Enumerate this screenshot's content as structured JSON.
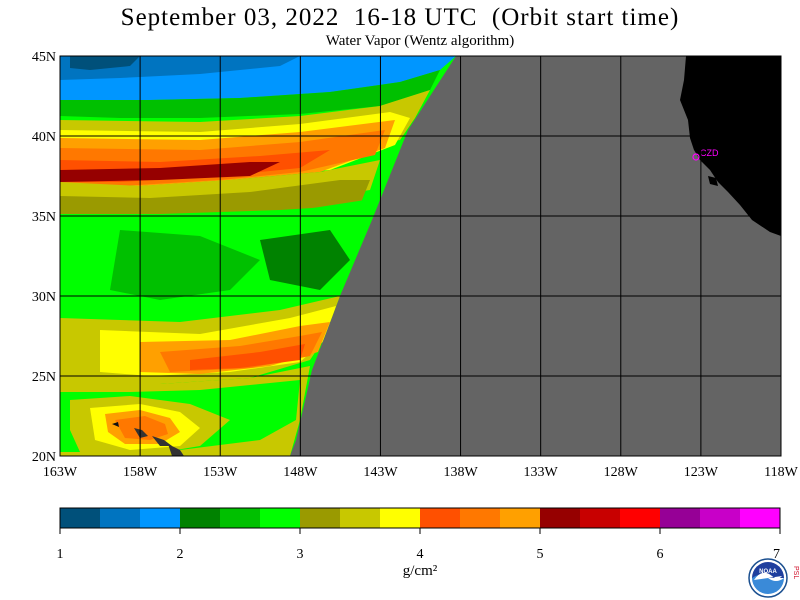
{
  "header": {
    "title": "September 03, 2022  16-18 UTC  (Orbit start time)",
    "subtitle": "Water Vapor (Wentz algorithm)"
  },
  "map": {
    "lat_labels": [
      "45N",
      "40N",
      "35N",
      "30N",
      "25N",
      "20N"
    ],
    "lon_labels": [
      "163W",
      "158W",
      "153W",
      "148W",
      "143W",
      "138W",
      "133W",
      "128W",
      "123W",
      "118W"
    ],
    "lat_range": [
      20,
      45
    ],
    "lon_range": [
      -163,
      -118
    ],
    "station_label": "CZD",
    "colors": {
      "no_data": "#646464",
      "land": "#000000",
      "station": "#ff00ff"
    }
  },
  "colorbar": {
    "tick_labels": [
      "1",
      "2",
      "3",
      "4",
      "5",
      "6",
      "7"
    ],
    "unit": "g/cm²",
    "colors": [
      "#00507a",
      "#0074c0",
      "#0096ff",
      "#008200",
      "#00c000",
      "#00ff00",
      "#9a9a00",
      "#c8c800",
      "#ffff00",
      "#ff5000",
      "#ff7800",
      "#ffa000",
      "#960000",
      "#c80000",
      "#ff0000",
      "#960096",
      "#c800c8",
      "#ff00ff"
    ]
  },
  "logo": {
    "icon": "noaa-logo-icon",
    "text": "NOAA",
    "side_text": "PSL"
  }
}
